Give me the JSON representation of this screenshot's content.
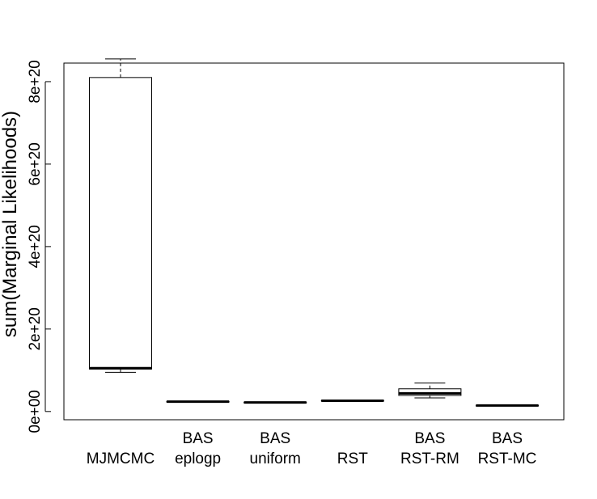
{
  "chart_data": {
    "type": "boxplot",
    "title": "",
    "xlabel": "",
    "ylabel": "sum(Marginal Likelihoods)",
    "ylim": [
      -2e+19,
      8.45e+20
    ],
    "yticks": [
      0,
      2e+20,
      4e+20,
      6e+20,
      8e+20
    ],
    "ytick_labels": [
      "0e+00",
      "2e+20",
      "4e+20",
      "6e+20",
      "8e+20"
    ],
    "grid": false,
    "categories": [
      [
        "MJMCMC"
      ],
      [
        "BAS",
        "eplogp"
      ],
      [
        "BAS",
        "uniform"
      ],
      [
        "RST"
      ],
      [
        "BAS",
        "RST-RM"
      ],
      [
        "BAS",
        "RST-MC"
      ]
    ],
    "boxes": [
      {
        "whisker_low": 9.5e+19,
        "q1": 1.03e+20,
        "median": 1.05e+20,
        "q3": 8.1e+20,
        "whisker_high": 8.55e+20
      },
      {
        "whisker_low": 2.3e+19,
        "q1": 2.35e+19,
        "median": 2.4e+19,
        "q3": 2.45e+19,
        "whisker_high": 2.5e+19
      },
      {
        "whisker_low": 2.1e+19,
        "q1": 2.15e+19,
        "median": 2.2e+19,
        "q3": 2.25e+19,
        "whisker_high": 2.3e+19
      },
      {
        "whisker_low": 2.5e+19,
        "q1": 2.55e+19,
        "median": 2.6e+19,
        "q3": 2.7e+19,
        "whisker_high": 2.8e+19
      },
      {
        "whisker_low": 3.3e+19,
        "q1": 3.9e+19,
        "median": 4.4e+19,
        "q3": 5.5e+19,
        "whisker_high": 6.9e+19
      },
      {
        "whisker_low": 1.35e+19,
        "q1": 1.4e+19,
        "median": 1.45e+19,
        "q3": 1.5e+19,
        "whisker_high": 1.55e+19
      }
    ]
  }
}
